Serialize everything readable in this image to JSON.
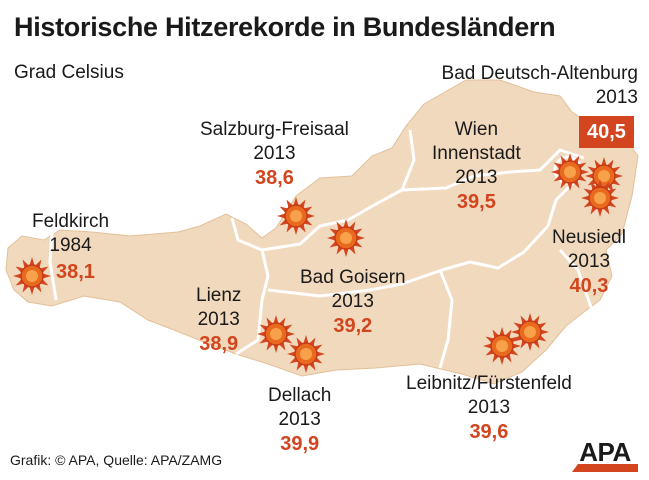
{
  "title": "Historische Hitzerekorde in Bundesländern",
  "unit": "Grad Celsius",
  "colors": {
    "map_fill": "#f1d9bd",
    "border": "#ffffff",
    "accent": "#d2451e",
    "sun_body": "#e96a1e",
    "text": "#1a1a1a"
  },
  "records": [
    {
      "place": "Feldkirch",
      "year": "1984",
      "value": "38,1"
    },
    {
      "place": "Salzburg-Freisaal",
      "year": "2013",
      "value": "38,6"
    },
    {
      "place": "Bad Goisern",
      "year": "2013",
      "value": "39,2"
    },
    {
      "place": "Lienz",
      "year": "2013",
      "value": "38,9"
    },
    {
      "place": "Dellach",
      "year": "2013",
      "value": "39,9"
    },
    {
      "place": "Wien Innenstadt",
      "place_line1": "Wien",
      "place_line2": "Innenstadt",
      "year": "2013",
      "value": "39,5"
    },
    {
      "place": "Bad Deutsch-Altenburg",
      "year": "2013",
      "value": "40,5"
    },
    {
      "place": "Neusiedl",
      "year": "2013",
      "value": "40,3"
    },
    {
      "place": "Leibnitz/Fürstenfeld",
      "year": "2013",
      "value": "39,6"
    }
  ],
  "credit": "Grafik: © APA, Quelle: APA/ZAMG",
  "logo": {
    "text": "APA",
    "icon": "apa-logo"
  },
  "marker_icon": "sun-icon"
}
